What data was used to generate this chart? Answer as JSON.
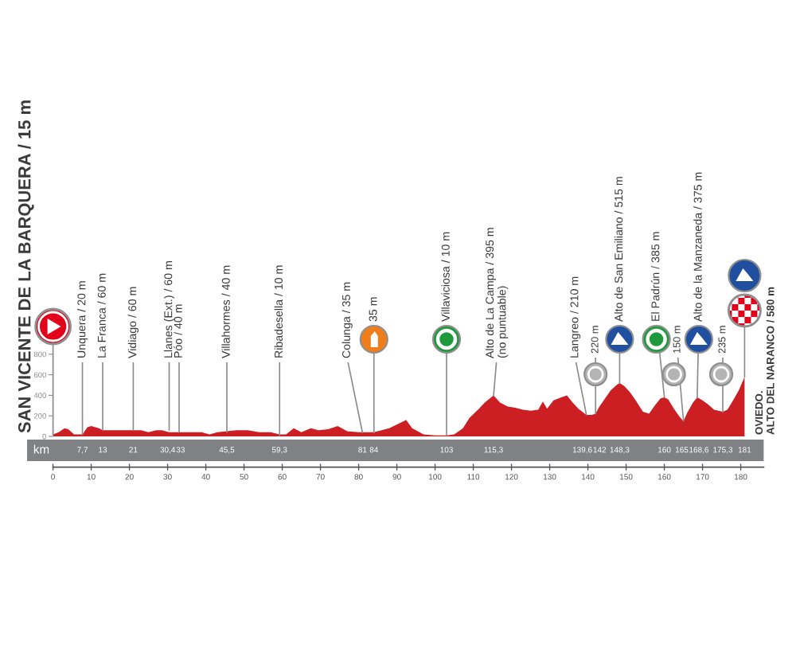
{
  "chart_data": {
    "type": "area",
    "color": "#cc1f24",
    "x": [
      0,
      1.5,
      3,
      4,
      5.5,
      7.7,
      9,
      10,
      12,
      13,
      16,
      19,
      21,
      23,
      25,
      27,
      28.5,
      30.4,
      33,
      36,
      39,
      41,
      43,
      45.5,
      48,
      51,
      54,
      57,
      59.3,
      61,
      63,
      65,
      67.5,
      69.5,
      72,
      74.5,
      77,
      80,
      84,
      88,
      92.4,
      94,
      97,
      100,
      103,
      105,
      107.3,
      109,
      111.5,
      113,
      115.3,
      117,
      119,
      121,
      123,
      125,
      127,
      128.2,
      129.3,
      131,
      133,
      134.5,
      136,
      137.5,
      139.6,
      141,
      142,
      143,
      144.5,
      146,
      147.5,
      148.3,
      149.5,
      151,
      152.5,
      154.4,
      156,
      157.5,
      159,
      160,
      161,
      162.5,
      164,
      165,
      166,
      167.5,
      168.6,
      170,
      171.5,
      173,
      175.3,
      176.5,
      178,
      179.5,
      181
    ],
    "values": [
      20,
      40,
      80,
      70,
      20,
      20,
      90,
      100,
      80,
      60,
      60,
      60,
      60,
      60,
      40,
      60,
      60,
      40,
      40,
      40,
      40,
      20,
      40,
      50,
      60,
      60,
      40,
      40,
      20,
      20,
      80,
      40,
      80,
      60,
      70,
      100,
      50,
      40,
      40,
      80,
      160,
      80,
      20,
      10,
      10,
      20,
      80,
      180,
      270,
      330,
      400,
      330,
      290,
      280,
      260,
      250,
      260,
      340,
      270,
      350,
      380,
      400,
      330,
      270,
      210,
      210,
      220,
      290,
      370,
      450,
      500,
      520,
      490,
      430,
      350,
      240,
      220,
      300,
      370,
      380,
      360,
      270,
      190,
      150,
      230,
      330,
      380,
      350,
      310,
      260,
      240,
      260,
      350,
      450,
      580
    ],
    "xlim": [
      0,
      186
    ],
    "xticks": [
      0,
      10,
      20,
      30,
      40,
      50,
      60,
      70,
      80,
      90,
      100,
      110,
      120,
      130,
      140,
      150,
      160,
      170,
      180
    ],
    "ylim": [
      0,
      800
    ],
    "yticks": [
      0,
      200,
      400,
      600,
      800
    ],
    "x2label": "km",
    "x2lim": [
      0,
      186
    ],
    "x2ticks": [
      {
        "value": 7.7,
        "label": "7,7"
      },
      13,
      21,
      {
        "value": 30.4,
        "label": "30,4"
      },
      33,
      {
        "value": 45.5,
        "label": "45,5"
      },
      {
        "value": 59.3,
        "label": "59,3"
      },
      81,
      84,
      103,
      {
        "value": 115.3,
        "label": "115,3"
      },
      {
        "value": 139.6,
        "label": "139,6"
      },
      142,
      {
        "value": 148.3,
        "label": "148,3"
      },
      160,
      165,
      {
        "value": 168.6,
        "label": "168,6"
      },
      {
        "value": 175.3,
        "label": "175,3"
      },
      181
    ],
    "annotations": [
      "SAN VICENTE DE LA BARQUERA / 15 m",
      {
        "text": "Unquera / 20 m",
        "x": 7.7,
        "y": 20
      },
      {
        "text": "La Franca / 60 m",
        "x": 13,
        "y": 60
      },
      {
        "text": "Vidiago / 60 m",
        "x": 21,
        "y": 60
      },
      {
        "text": "Llanes (Ext.) / 60 m",
        "x": 30.4,
        "y": 60
      },
      {
        "text": "Póo / 40 m",
        "x": 33,
        "y": 40
      },
      {
        "text": "Villahormes / 40 m",
        "x": 45.5,
        "y": 40
      },
      {
        "text": "Ribadesella / 10 m",
        "x": 59.3,
        "y": 10
      },
      {
        "text": "Colunga / 35 m",
        "x": 81,
        "y": 35
      },
      {
        "text": "35 m",
        "x": 84,
        "y": 35
      },
      {
        "text": "Villaviciosa / 10 m",
        "x": 103,
        "y": 10
      },
      {
        "text": "Alto de La Campa / 395 m\n(no puntuable)",
        "x": 115.3,
        "y": 395
      },
      {
        "text": "Langreo / 210 m",
        "x": 139.6,
        "y": 210
      },
      {
        "text": "220 m",
        "x": 142,
        "y": 220
      },
      {
        "text": "Alto de San Emiliano / 515 m",
        "x": 148.3,
        "y": 515
      },
      {
        "text": "El Padrún / 385 m",
        "x": 160,
        "y": 385
      },
      {
        "text": "150 m",
        "x": 165,
        "y": 150
      },
      {
        "text": "Alto de la Manzaneda / 375 m",
        "x": 168.6,
        "y": 375
      },
      {
        "text": "235 m",
        "x": 175.3,
        "y": 235
      },
      "OVIEDO.\nALTO DEL NARANCO / 580 m"
    ]
  }
}
